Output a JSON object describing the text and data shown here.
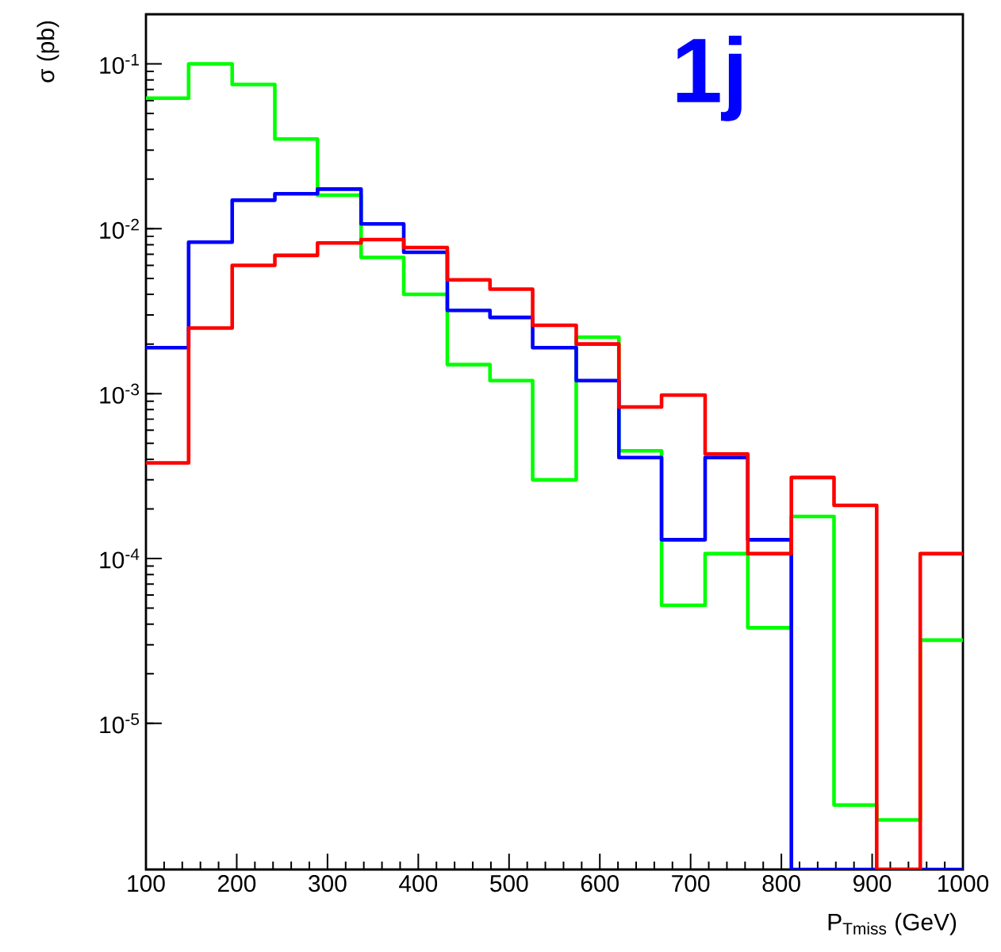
{
  "chart_data": {
    "type": "histogram",
    "xlabel": "P$_{Tmiss}$ (GeV)",
    "ylabel": "σ (pb)",
    "annotations": [
      "1j"
    ],
    "bins": [
      100,
      147,
      195,
      242,
      289,
      337,
      384,
      432,
      479,
      526,
      574,
      621,
      668,
      716,
      763,
      811,
      858,
      905,
      953,
      1000
    ],
    "series": [
      {
        "color": "#00ff00",
        "values": [
          0.062,
          0.1,
          0.075,
          0.035,
          0.016,
          0.0067,
          0.004,
          0.0015,
          0.0012,
          0.0003,
          0.0022,
          0.00045,
          5.2e-05,
          0.000107,
          3.8e-05,
          0.00018,
          3.2e-06,
          2.6e-06,
          3.2e-05
        ]
      },
      {
        "color": "#0000ff",
        "values": [
          0.0019,
          0.0083,
          0.0149,
          0.0163,
          0.0174,
          0.0107,
          0.0072,
          0.0032,
          0.0029,
          0.0019,
          0.0012,
          0.00041,
          0.00013,
          0.00041,
          0.00013,
          null,
          null,
          null,
          null
        ]
      },
      {
        "color": "#ff0000",
        "values": [
          0.00038,
          0.0025,
          0.006,
          0.0069,
          0.0082,
          0.0086,
          0.0077,
          0.0049,
          0.0043,
          0.0026,
          0.002,
          0.00083,
          0.00098,
          0.00043,
          0.000107,
          0.00031,
          0.00021,
          null,
          0.000107
        ]
      }
    ],
    "xlim": [
      100,
      1000
    ],
    "ylim": [
      1.3e-06,
      0.2
    ],
    "log": "y",
    "xticks": [
      100,
      200,
      300,
      400,
      500,
      600,
      700,
      800,
      900,
      1000
    ],
    "yticks": [
      {
        "value": 1e-05,
        "label": "10$^{-5}$"
      },
      {
        "value": 0.0001,
        "label": "10$^{-4}$"
      },
      {
        "value": 0.001,
        "label": "10$^{-3}$"
      },
      {
        "value": 0.01,
        "label": "10$^{-2}$"
      },
      {
        "value": 0.1,
        "label": "10$^{-1}$"
      }
    ]
  }
}
